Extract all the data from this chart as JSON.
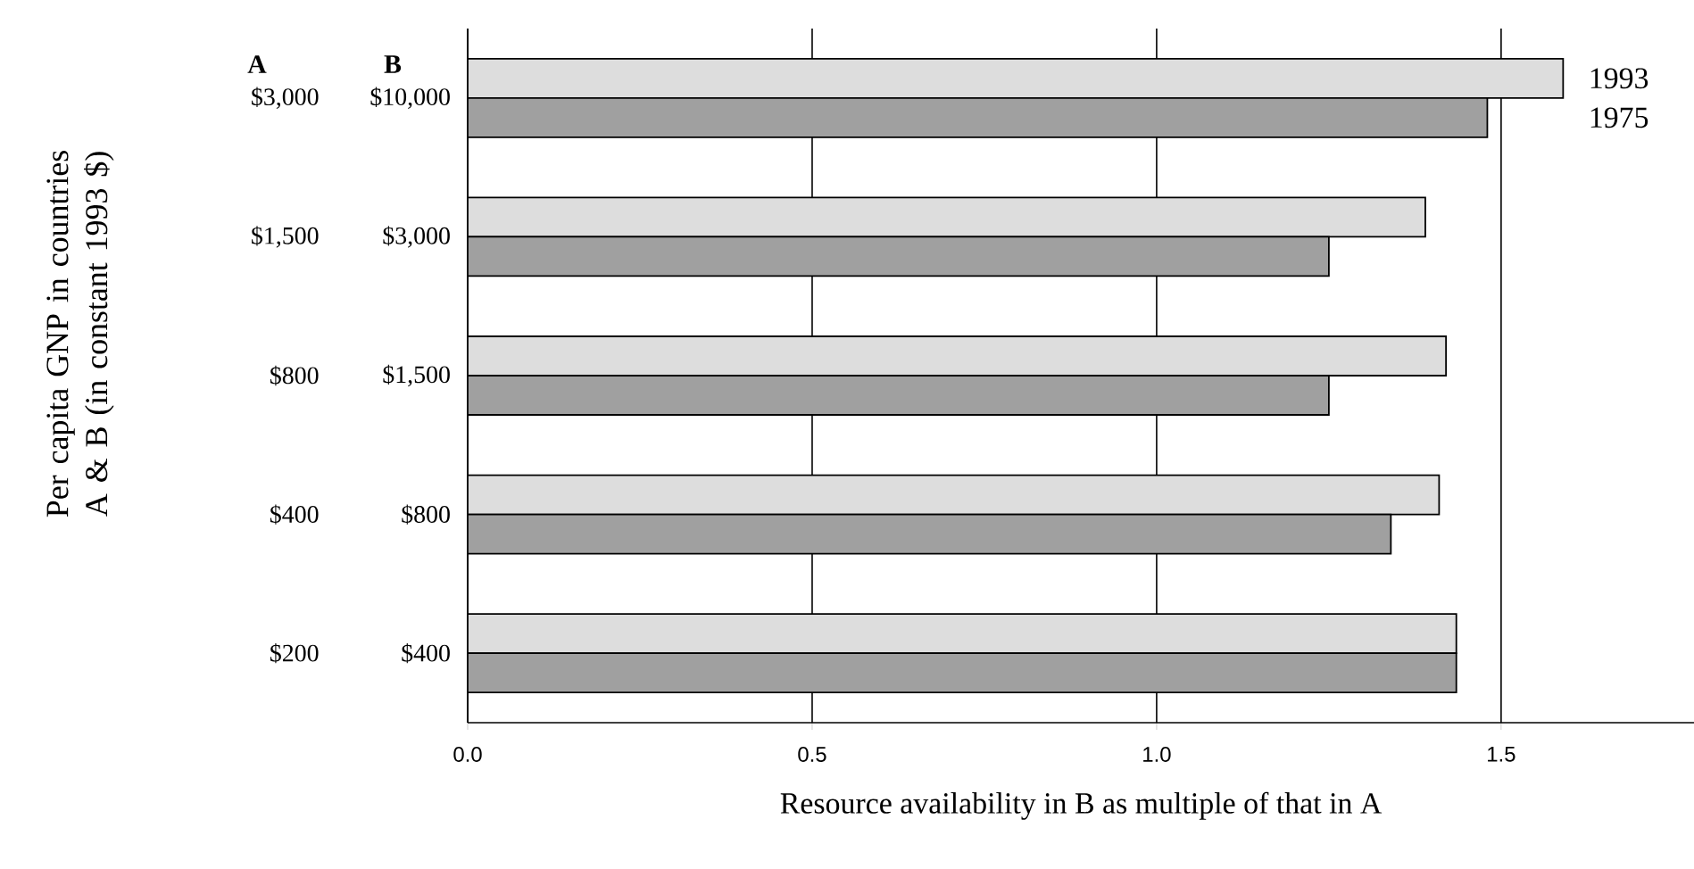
{
  "chart_data": {
    "type": "bar",
    "orientation": "horizontal",
    "categories": [
      "$10,000",
      "$3,000",
      "$1,500",
      "$800",
      "$400"
    ],
    "series": [
      {
        "name": "1993",
        "color": "#dddddd",
        "values": [
          1.59,
          1.39,
          1.42,
          1.41,
          1.435
        ]
      },
      {
        "name": "1975",
        "color": "#a0a0a0",
        "values": [
          1.48,
          1.25,
          1.25,
          1.34,
          1.435
        ]
      }
    ],
    "xlim": [
      0,
      1.78
    ],
    "xticks": [
      {
        "value": 0,
        "label": "0.0"
      },
      {
        "value": 0.5,
        "label": "0.5"
      },
      {
        "value": 1,
        "label": "1.0"
      },
      {
        "value": 1.5,
        "label": "1.5"
      }
    ],
    "grid": "x",
    "xlabel": "Resource availability in B as multiple of that in A",
    "annotations": [
      "Per capita GNP in countries A & B (in constant 1993 $)",
      "A",
      "B",
      "$3,000",
      "$1,500",
      "$800",
      "$400",
      "$200"
    ]
  }
}
